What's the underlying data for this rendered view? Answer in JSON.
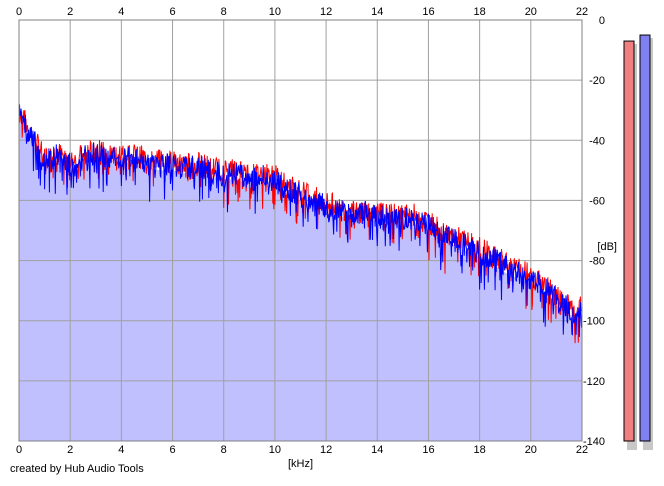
{
  "credit": "created by Hub Audio Tools",
  "chart_data": {
    "type": "line",
    "xlabel": "[kHz]",
    "ylabel": "[dB]",
    "xlim": [
      0,
      22
    ],
    "ylim": [
      -140,
      0
    ],
    "x_ticks": [
      0,
      2,
      4,
      6,
      8,
      10,
      12,
      14,
      16,
      18,
      20,
      22
    ],
    "y_ticks": [
      0,
      -20,
      -40,
      -60,
      -80,
      -100,
      -120,
      -140
    ],
    "grid": true,
    "fill_color": "#c0c0ff",
    "x": [
      0,
      0.5,
      1,
      1.5,
      2,
      2.5,
      3,
      3.5,
      4,
      4.5,
      5,
      5.5,
      6,
      6.5,
      7,
      7.5,
      8,
      8.5,
      9,
      9.5,
      10,
      10.5,
      11,
      11.5,
      12,
      12.5,
      13,
      13.5,
      14,
      14.5,
      15,
      15.5,
      16,
      16.5,
      17,
      17.5,
      18,
      18.5,
      19,
      19.5,
      20,
      20.5,
      21,
      21.5,
      22
    ],
    "series": [
      {
        "color": "#ff0000",
        "values": [
          -30,
          -38,
          -46,
          -44,
          -47,
          -45,
          -43,
          -45,
          -44,
          -45,
          -46,
          -47,
          -47,
          -48,
          -48,
          -49,
          -50,
          -50,
          -52,
          -51,
          -52,
          -55,
          -57,
          -59,
          -61,
          -62,
          -64,
          -63,
          -64,
          -65,
          -65,
          -65,
          -67,
          -70,
          -72,
          -74,
          -76,
          -78,
          -81,
          -83,
          -85,
          -88,
          -92,
          -95,
          -96
        ]
      },
      {
        "color": "#0000ff",
        "values": [
          -31,
          -39,
          -47,
          -45,
          -48,
          -46,
          -44,
          -46,
          -45,
          -46,
          -47,
          -48,
          -48,
          -49,
          -49,
          -50,
          -52,
          -51,
          -53,
          -52,
          -54,
          -56,
          -58,
          -60,
          -62,
          -63,
          -65,
          -64,
          -65,
          -66,
          -66,
          -66,
          -68,
          -72,
          -73,
          -75,
          -78,
          -79,
          -82,
          -84,
          -86,
          -89,
          -93,
          -96,
          -98
        ]
      }
    ],
    "level_meters": [
      {
        "color": "#f08080",
        "level_db": -7
      },
      {
        "color": "#8080f0",
        "level_db": -5
      }
    ]
  }
}
